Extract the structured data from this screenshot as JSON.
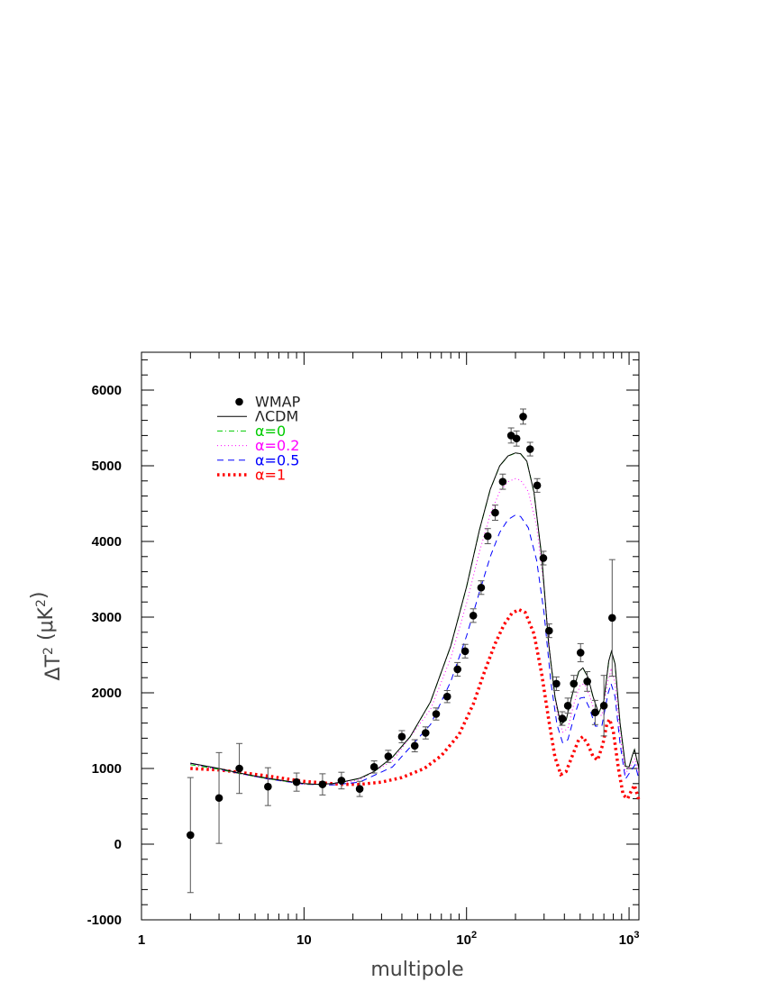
{
  "chart_data": {
    "type": "scatter",
    "xlabel": "multipole",
    "ylabel": "ΔT² (μK²)",
    "xscale": "log",
    "xlim": [
      1,
      1150
    ],
    "ylim": [
      -1000,
      6500
    ],
    "x_ticks": [
      {
        "value": 1,
        "label": "1",
        "sup": ""
      },
      {
        "value": 10,
        "label": "10",
        "sup": ""
      },
      {
        "value": 100,
        "label": "10",
        "sup": "2"
      },
      {
        "value": 1000,
        "label": "10",
        "sup": "3"
      }
    ],
    "y_ticks": [
      {
        "value": -1000,
        "label": "-1000"
      },
      {
        "value": 0,
        "label": "0"
      },
      {
        "value": 1000,
        "label": "1000"
      },
      {
        "value": 2000,
        "label": "2000"
      },
      {
        "value": 3000,
        "label": "3000"
      },
      {
        "value": 4000,
        "label": "4000"
      },
      {
        "value": 5000,
        "label": "5000"
      },
      {
        "value": 6000,
        "label": "6000"
      }
    ],
    "grid": false,
    "legend_position": "top-left",
    "legend": [
      {
        "label": "WMAP",
        "color": "#000000",
        "style": "point"
      },
      {
        "label": "ΛCDM",
        "color": "#000000",
        "style": "solid"
      },
      {
        "label": "α=0",
        "color": "#00cc00",
        "style": "dashdot"
      },
      {
        "label": "α=0.2",
        "color": "#ff00ff",
        "style": "dotted"
      },
      {
        "label": "α=0.5",
        "color": "#0000ff",
        "style": "dashed"
      },
      {
        "label": "α=1",
        "color": "#ff0000",
        "style": "thickdotted"
      }
    ],
    "wmap_points": [
      {
        "x": 2,
        "y": 120,
        "err": 760
      },
      {
        "x": 3,
        "y": 610,
        "err": 600
      },
      {
        "x": 4,
        "y": 1000,
        "err": 330
      },
      {
        "x": 6,
        "y": 760,
        "err": 250
      },
      {
        "x": 9,
        "y": 820,
        "err": 120
      },
      {
        "x": 13,
        "y": 790,
        "err": 140
      },
      {
        "x": 17,
        "y": 840,
        "err": 110
      },
      {
        "x": 22,
        "y": 730,
        "err": 100
      },
      {
        "x": 27,
        "y": 1020,
        "err": 80
      },
      {
        "x": 33,
        "y": 1160,
        "err": 80
      },
      {
        "x": 40,
        "y": 1420,
        "err": 80
      },
      {
        "x": 48,
        "y": 1300,
        "err": 80
      },
      {
        "x": 56,
        "y": 1470,
        "err": 80
      },
      {
        "x": 65,
        "y": 1720,
        "err": 80
      },
      {
        "x": 76,
        "y": 1950,
        "err": 80
      },
      {
        "x": 88,
        "y": 2310,
        "err": 90
      },
      {
        "x": 98,
        "y": 2550,
        "err": 90
      },
      {
        "x": 110,
        "y": 3020,
        "err": 90
      },
      {
        "x": 123,
        "y": 3390,
        "err": 90
      },
      {
        "x": 135,
        "y": 4070,
        "err": 100
      },
      {
        "x": 150,
        "y": 4380,
        "err": 100
      },
      {
        "x": 167,
        "y": 4790,
        "err": 100
      },
      {
        "x": 188,
        "y": 5400,
        "err": 100
      },
      {
        "x": 203,
        "y": 5360,
        "err": 100
      },
      {
        "x": 223,
        "y": 5650,
        "err": 100
      },
      {
        "x": 246,
        "y": 5220,
        "err": 90
      },
      {
        "x": 272,
        "y": 4740,
        "err": 90
      },
      {
        "x": 297,
        "y": 3780,
        "err": 90
      },
      {
        "x": 322,
        "y": 2820,
        "err": 90
      },
      {
        "x": 357,
        "y": 2120,
        "err": 90
      },
      {
        "x": 388,
        "y": 1660,
        "err": 90
      },
      {
        "x": 420,
        "y": 1830,
        "err": 100
      },
      {
        "x": 457,
        "y": 2120,
        "err": 110
      },
      {
        "x": 503,
        "y": 2530,
        "err": 120
      },
      {
        "x": 553,
        "y": 2150,
        "err": 130
      },
      {
        "x": 618,
        "y": 1740,
        "err": 160
      },
      {
        "x": 700,
        "y": 1830,
        "err": 400
      },
      {
        "x": 787,
        "y": 2990,
        "err": 770
      }
    ],
    "series": [
      {
        "name": "ΛCDM",
        "color": "#000000",
        "style": "solid",
        "points": [
          [
            2,
            1070
          ],
          [
            3,
            1000
          ],
          [
            4,
            940
          ],
          [
            5,
            900
          ],
          [
            6,
            870
          ],
          [
            8,
            830
          ],
          [
            10,
            800
          ],
          [
            12,
            790
          ],
          [
            15,
            800
          ],
          [
            18,
            830
          ],
          [
            22,
            870
          ],
          [
            27,
            960
          ],
          [
            35,
            1150
          ],
          [
            45,
            1420
          ],
          [
            60,
            1880
          ],
          [
            80,
            2620
          ],
          [
            100,
            3400
          ],
          [
            120,
            4150
          ],
          [
            140,
            4690
          ],
          [
            160,
            5000
          ],
          [
            180,
            5130
          ],
          [
            200,
            5170
          ],
          [
            215,
            5160
          ],
          [
            235,
            5060
          ],
          [
            260,
            4650
          ],
          [
            290,
            3800
          ],
          [
            320,
            2650
          ],
          [
            350,
            1950
          ],
          [
            380,
            1580
          ],
          [
            410,
            1640
          ],
          [
            450,
            2000
          ],
          [
            490,
            2280
          ],
          [
            520,
            2330
          ],
          [
            560,
            2200
          ],
          [
            600,
            1950
          ],
          [
            650,
            1730
          ],
          [
            700,
            1900
          ],
          [
            750,
            2420
          ],
          [
            780,
            2550
          ],
          [
            820,
            2380
          ],
          [
            880,
            1600
          ],
          [
            950,
            1030
          ],
          [
            1000,
            1020
          ],
          [
            1050,
            1180
          ],
          [
            1080,
            1250
          ],
          [
            1150,
            1000
          ]
        ]
      },
      {
        "name": "α=0",
        "color": "#00cc00",
        "style": "dashdot",
        "points": [
          [
            2,
            1050
          ],
          [
            3,
            990
          ],
          [
            4,
            935
          ],
          [
            5,
            895
          ],
          [
            6,
            865
          ],
          [
            8,
            825
          ],
          [
            10,
            798
          ],
          [
            12,
            788
          ],
          [
            15,
            798
          ],
          [
            18,
            828
          ],
          [
            22,
            868
          ],
          [
            27,
            958
          ],
          [
            35,
            1148
          ],
          [
            45,
            1418
          ],
          [
            60,
            1878
          ],
          [
            80,
            2618
          ],
          [
            100,
            3398
          ],
          [
            120,
            4148
          ],
          [
            140,
            4688
          ],
          [
            160,
            4998
          ],
          [
            180,
            5128
          ],
          [
            200,
            5168
          ],
          [
            215,
            5158
          ],
          [
            235,
            5058
          ],
          [
            260,
            4648
          ],
          [
            290,
            3798
          ],
          [
            320,
            2648
          ],
          [
            350,
            1948
          ],
          [
            380,
            1578
          ],
          [
            410,
            1638
          ],
          [
            450,
            1998
          ],
          [
            490,
            2278
          ],
          [
            520,
            2328
          ],
          [
            560,
            2198
          ],
          [
            600,
            1948
          ],
          [
            650,
            1728
          ],
          [
            700,
            1898
          ],
          [
            750,
            2418
          ],
          [
            780,
            2548
          ],
          [
            820,
            2378
          ],
          [
            880,
            1598
          ],
          [
            950,
            1028
          ],
          [
            1000,
            1018
          ],
          [
            1050,
            1178
          ],
          [
            1080,
            1248
          ],
          [
            1150,
            998
          ]
        ]
      },
      {
        "name": "α=0.2",
        "color": "#ff00ff",
        "style": "dotted",
        "points": [
          [
            2,
            1060
          ],
          [
            4,
            930
          ],
          [
            6,
            860
          ],
          [
            10,
            790
          ],
          [
            15,
            790
          ],
          [
            22,
            850
          ],
          [
            35,
            1100
          ],
          [
            60,
            1780
          ],
          [
            80,
            2460
          ],
          [
            100,
            3180
          ],
          [
            120,
            3860
          ],
          [
            140,
            4360
          ],
          [
            160,
            4660
          ],
          [
            180,
            4790
          ],
          [
            200,
            4830
          ],
          [
            215,
            4810
          ],
          [
            240,
            4660
          ],
          [
            270,
            4200
          ],
          [
            300,
            3400
          ],
          [
            330,
            2400
          ],
          [
            360,
            1750
          ],
          [
            390,
            1480
          ],
          [
            420,
            1530
          ],
          [
            460,
            1870
          ],
          [
            500,
            2100
          ],
          [
            530,
            2120
          ],
          [
            570,
            1970
          ],
          [
            620,
            1720
          ],
          [
            680,
            1700
          ],
          [
            740,
            2150
          ],
          [
            775,
            2300
          ],
          [
            820,
            2130
          ],
          [
            880,
            1450
          ],
          [
            950,
            930
          ],
          [
            1050,
            1080
          ],
          [
            1090,
            1130
          ],
          [
            1150,
            930
          ]
        ]
      },
      {
        "name": "α=0.5",
        "color": "#0000ff",
        "style": "dashed",
        "points": [
          [
            2,
            1070
          ],
          [
            4,
            935
          ],
          [
            6,
            862
          ],
          [
            10,
            792
          ],
          [
            15,
            782
          ],
          [
            22,
            820
          ],
          [
            35,
            1020
          ],
          [
            60,
            1580
          ],
          [
            80,
            2150
          ],
          [
            100,
            2750
          ],
          [
            120,
            3330
          ],
          [
            140,
            3800
          ],
          [
            160,
            4120
          ],
          [
            180,
            4290
          ],
          [
            200,
            4350
          ],
          [
            215,
            4330
          ],
          [
            240,
            4180
          ],
          [
            270,
            3750
          ],
          [
            300,
            3050
          ],
          [
            330,
            2150
          ],
          [
            360,
            1580
          ],
          [
            390,
            1340
          ],
          [
            420,
            1380
          ],
          [
            460,
            1690
          ],
          [
            500,
            1930
          ],
          [
            530,
            1940
          ],
          [
            570,
            1800
          ],
          [
            620,
            1560
          ],
          [
            680,
            1560
          ],
          [
            740,
            1980
          ],
          [
            775,
            2120
          ],
          [
            820,
            1950
          ],
          [
            880,
            1330
          ],
          [
            950,
            860
          ],
          [
            1050,
            1000
          ],
          [
            1090,
            1050
          ],
          [
            1150,
            860
          ]
        ]
      },
      {
        "name": "α=1",
        "color": "#ff0000",
        "style": "thickdotted",
        "points": [
          [
            2,
            1000
          ],
          [
            3,
            980
          ],
          [
            4,
            950
          ],
          [
            6,
            900
          ],
          [
            8,
            860
          ],
          [
            10,
            830
          ],
          [
            13,
            810
          ],
          [
            17,
            790
          ],
          [
            22,
            790
          ],
          [
            30,
            820
          ],
          [
            40,
            880
          ],
          [
            55,
            1000
          ],
          [
            70,
            1170
          ],
          [
            90,
            1450
          ],
          [
            110,
            1850
          ],
          [
            130,
            2300
          ],
          [
            150,
            2650
          ],
          [
            170,
            2900
          ],
          [
            190,
            3050
          ],
          [
            210,
            3100
          ],
          [
            230,
            3060
          ],
          [
            260,
            2780
          ],
          [
            290,
            2250
          ],
          [
            320,
            1650
          ],
          [
            350,
            1150
          ],
          [
            380,
            920
          ],
          [
            410,
            960
          ],
          [
            450,
            1180
          ],
          [
            490,
            1380
          ],
          [
            520,
            1420
          ],
          [
            560,
            1310
          ],
          [
            600,
            1160
          ],
          [
            640,
            1110
          ],
          [
            690,
            1320
          ],
          [
            730,
            1590
          ],
          [
            760,
            1650
          ],
          [
            800,
            1490
          ],
          [
            860,
            1000
          ],
          [
            920,
            650
          ],
          [
            980,
            600
          ],
          [
            1030,
            700
          ],
          [
            1080,
            780
          ],
          [
            1150,
            580
          ]
        ]
      }
    ]
  }
}
